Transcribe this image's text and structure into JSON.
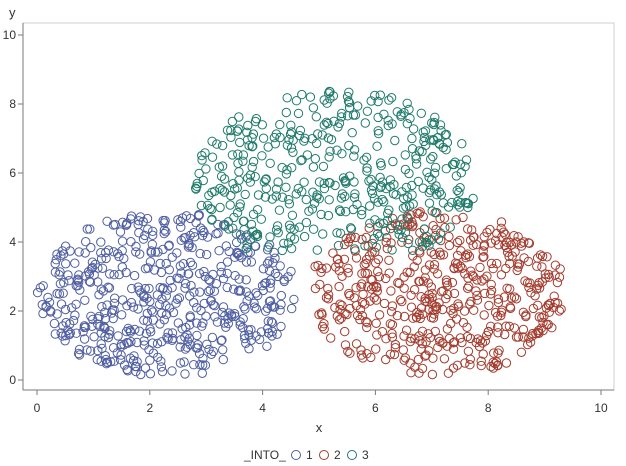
{
  "chart_data": {
    "type": "scatter",
    "xlabel": "x",
    "ylabel": "y",
    "xlim": [
      0,
      10
    ],
    "ylim": [
      0,
      10
    ],
    "xticks": [
      "0",
      "2",
      "4",
      "6",
      "8",
      "10"
    ],
    "yticks": [
      "0",
      "2",
      "4",
      "6",
      "8",
      "10"
    ],
    "grid": false,
    "marker": "open-circle",
    "legend": {
      "title": "_INTO_",
      "placement": "bottom-center",
      "entries": [
        "1",
        "2",
        "3"
      ]
    },
    "series": [
      {
        "name": "1",
        "color": "#4f5ea1",
        "cluster": {
          "cx": 2.3,
          "cy": 2.5,
          "rx": 2.3,
          "ry": 2.4,
          "n": 520,
          "xmin": 0,
          "ymin": 0,
          "ymax": 5.0
        }
      },
      {
        "name": "2",
        "color": "#a33c2e",
        "cluster": {
          "cx": 7.1,
          "cy": 2.5,
          "rx": 2.3,
          "ry": 2.4,
          "n": 500,
          "xmin": 4.7,
          "ymin": 0,
          "ymax": 4.9
        }
      },
      {
        "name": "3",
        "color": "#1f7a6b",
        "cluster": {
          "cx": 5.3,
          "cy": 5.8,
          "rx": 2.5,
          "ry": 2.6,
          "n": 430,
          "ymin": 3.7,
          "ymax": 8.4
        }
      }
    ]
  }
}
